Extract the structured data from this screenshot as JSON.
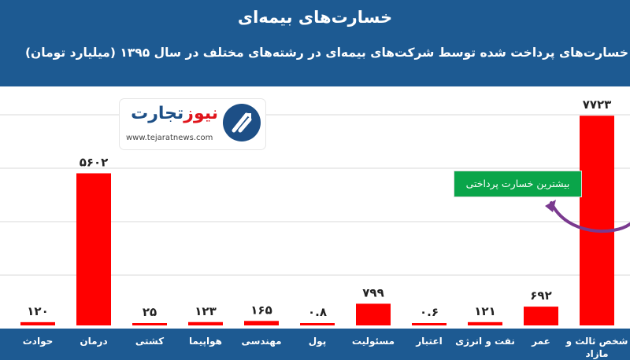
{
  "title": "خسارت‌های بیمه‌ای",
  "subtitle": "خسارت‌های پرداخت شده توسط شرکت‌های بیمه‌ای در رشته‌های مختلف در سال ۱۳۹۵ (میلیارد تومان)",
  "logo": {
    "brand_main": "تجارت",
    "brand_accent": "نیوز",
    "url": "www.tejaratnews.com"
  },
  "callout": {
    "text": "بیشترین خسارت پرداختی"
  },
  "colors": {
    "background": "#1d5a92",
    "bar": "#ff0000",
    "callout": "#0aa54a",
    "arrow": "#7a3a8f"
  },
  "chart_data": {
    "type": "bar",
    "categories": [
      "حوادث",
      "درمان",
      "کشتی",
      "هواپیما",
      "مهندسی",
      "پول",
      "مسئولیت",
      "اعتبار",
      "نفت و انرژی",
      "عمر",
      "شخص ثالث و مازاد"
    ],
    "values": [
      120,
      5602,
      25,
      123,
      165,
      0.8,
      799,
      0.6,
      121,
      692,
      7723
    ],
    "value_labels": [
      "۱۲۰",
      "۵۶۰۲",
      "۲۵",
      "۱۲۳",
      "۱۶۵",
      "۰.۸",
      "۷۹۹",
      "۰.۶",
      "۱۲۱",
      "۶۹۲",
      "۷۷۲۳"
    ],
    "ylim": [
      0,
      8800
    ],
    "grid": true,
    "legend": "none"
  }
}
